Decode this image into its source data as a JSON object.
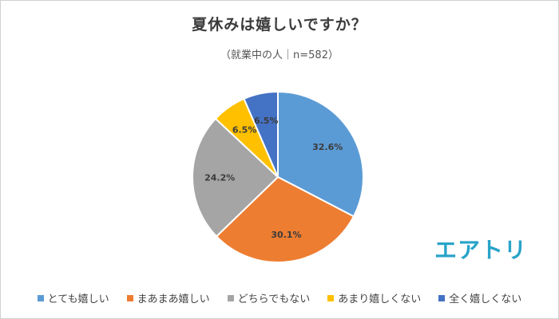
{
  "chart_data": {
    "type": "pie",
    "title": "夏休みは嬉しいですか？",
    "subtitle": "（就業中の人｜n=582）",
    "slices": [
      {
        "name": "とても嬉しい",
        "value": 32.6,
        "label": "32.6%",
        "color": "#5b9bd5"
      },
      {
        "name": "まあまあ嬉しい",
        "value": 30.1,
        "label": "30.1%",
        "color": "#ed7d31"
      },
      {
        "name": "どちらでもない",
        "value": 24.2,
        "label": "24.2%",
        "color": "#a5a5a5"
      },
      {
        "name": "あまり嬉しくない",
        "value": 6.5,
        "label": "6.5%",
        "color": "#ffc000"
      },
      {
        "name": "全く嬉しくない",
        "value": 6.5,
        "label": "6.5%",
        "color": "#4472c4"
      }
    ],
    "legend_position": "bottom"
  },
  "branding": {
    "logo_text": "エアトリ",
    "logo_color": "#29a3c9"
  }
}
